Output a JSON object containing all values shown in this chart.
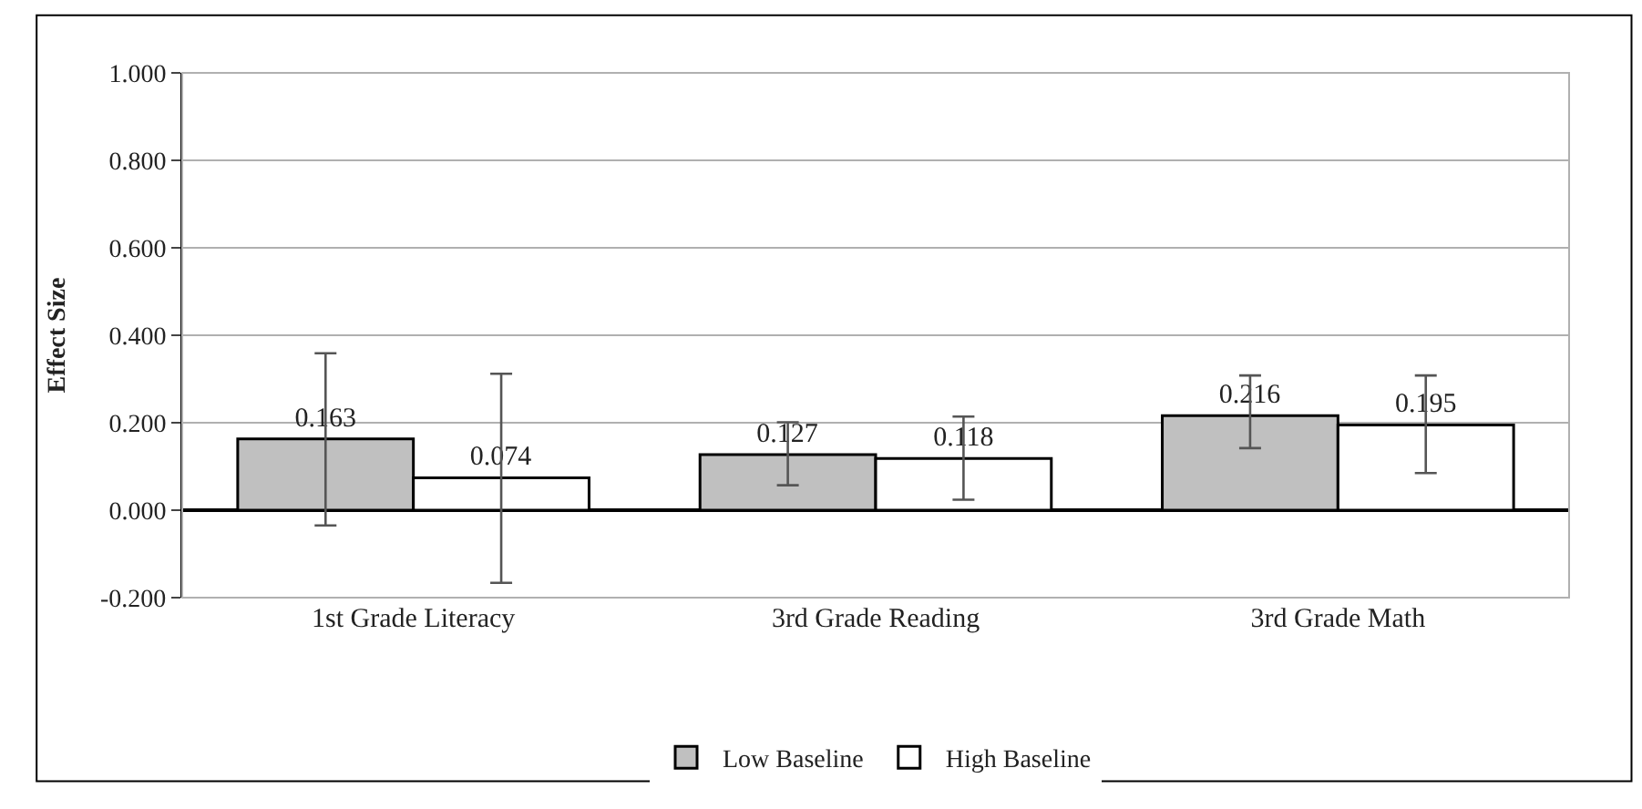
{
  "chart_data": {
    "type": "bar",
    "ylabel": "Effect Size",
    "categories": [
      "1st Grade Literacy",
      "3rd Grade Reading",
      "3rd Grade Math"
    ],
    "series": [
      {
        "name": "Low Baseline",
        "color": "#c0c0c0",
        "values": [
          0.163,
          0.127,
          0.216
        ],
        "errors": [
          [
            -0.035,
            0.359
          ],
          [
            0.057,
            0.201
          ],
          [
            0.142,
            0.308
          ]
        ]
      },
      {
        "name": "High Baseline",
        "color": "#ffffff",
        "values": [
          0.074,
          0.118,
          0.195
        ],
        "errors": [
          [
            -0.166,
            0.312
          ],
          [
            0.024,
            0.214
          ],
          [
            0.085,
            0.308
          ]
        ]
      }
    ],
    "ylim": [
      -0.2,
      1.0
    ],
    "yticks": [
      {
        "value": -0.2,
        "label": "-0.200"
      },
      {
        "value": 0,
        "label": "0.000"
      },
      {
        "value": 0.2,
        "label": "0.200"
      },
      {
        "value": 0.4,
        "label": "0.400"
      },
      {
        "value": 0.6,
        "label": "0.600"
      },
      {
        "value": 0.8,
        "label": "0.800"
      },
      {
        "value": 1.0,
        "label": "1.000"
      }
    ],
    "grid": "y",
    "legend": "bottom",
    "data_labels": true
  }
}
